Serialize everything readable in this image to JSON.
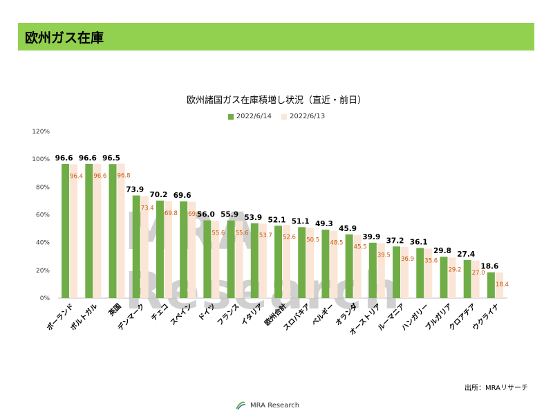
{
  "header": {
    "title": "欧州ガス在庫"
  },
  "source_text": "出所：MRAリサーチ",
  "footer": {
    "brand": "MRA Research"
  },
  "watermark": "MRA Research",
  "colors": {
    "accent": "#92d050",
    "series1": "#70ad47",
    "series2": "#fbe5d6",
    "label2": "#c55a11"
  },
  "chart_data": {
    "type": "bar",
    "title": "欧州諸国ガス在庫積増し状況（直近・前日）",
    "ylim": [
      0,
      120
    ],
    "yticks": [
      "0%",
      "20%",
      "40%",
      "60%",
      "80%",
      "100%",
      "120%"
    ],
    "legend_position": "top",
    "grid": false,
    "categories": [
      "ポーランド",
      "ポルトガル",
      "英国",
      "デンマーク",
      "チェコ",
      "スペイン",
      "ドイツ",
      "フランス",
      "イタリア",
      "欧州合計",
      "スロバキア",
      "ベルギー",
      "オランダ",
      "オーストリア",
      "ルーマニア",
      "ハンガリー",
      "ブルガリア",
      "クロアチア",
      "ウクライナ"
    ],
    "series": [
      {
        "name": "2022/6/14",
        "values": [
          96.6,
          96.6,
          96.5,
          73.9,
          70.2,
          69.6,
          56.0,
          55.9,
          53.9,
          52.1,
          51.1,
          49.3,
          45.9,
          39.9,
          37.2,
          36.1,
          29.8,
          27.4,
          18.6
        ],
        "labels": [
          "96.6",
          "96.6",
          "96.5",
          "73.9",
          "70.2",
          "69.6",
          "56.0",
          "55.9",
          "53.9",
          "52.1",
          "51.1",
          "49.3",
          "45.9",
          "39.9",
          "37.2",
          "36.1",
          "29.8",
          "27.4",
          "18.6"
        ]
      },
      {
        "name": "2022/6/13",
        "values": [
          96.4,
          96.6,
          96.8,
          73.4,
          69.8,
          69.3,
          55.6,
          55.6,
          53.7,
          52.6,
          50.5,
          48.5,
          45.5,
          39.5,
          36.9,
          35.6,
          29.2,
          27.0,
          18.4
        ],
        "labels": [
          "96.4",
          "96.6",
          "96.8",
          "73.4",
          "69.8",
          "69.3",
          "55.6",
          "55.6",
          "53.7",
          "52.6",
          "50.5",
          "48.5",
          "45.5",
          "39.5",
          "36.9",
          "35.6",
          "29.2",
          "27.0",
          "18.4"
        ]
      }
    ]
  }
}
